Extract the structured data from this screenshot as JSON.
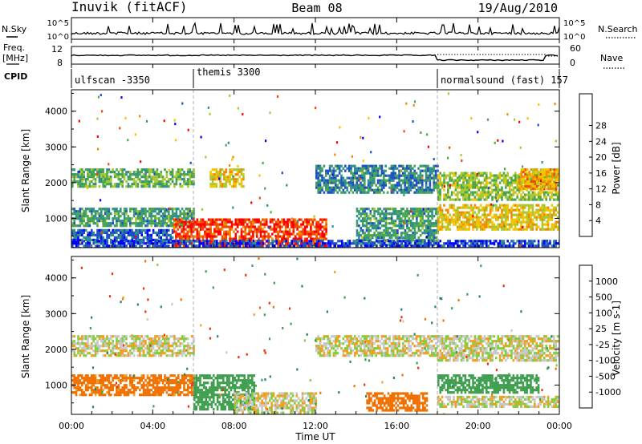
{
  "header": {
    "station": "Inuvik (fitACF)",
    "beam": "Beam 08",
    "date": "19/Aug/2010"
  },
  "top_panels": {
    "nsky_label": "N.Sky",
    "nsearch_label": "N.Search",
    "nsky_ticks": [
      "10^5",
      "10^0"
    ],
    "nsearch_ticks": [
      "10^5",
      "10^0"
    ],
    "freq_label_1": "Freq.",
    "freq_label_2": "[MHz]",
    "freq_ticks": [
      "12",
      "8"
    ],
    "nave_label": "Nave",
    "nave_ticks": [
      "60",
      "0"
    ],
    "cpid_label": "CPID",
    "cpid_segments": [
      {
        "label": "ulfscan -3350",
        "start_hour": 0
      },
      {
        "label": "themis 3300",
        "start_hour": 6
      },
      {
        "label": "normalsound (fast) 157",
        "start_hour": 18
      }
    ]
  },
  "time_axis": {
    "label": "Time UT",
    "ticks": [
      "00:00",
      "04:00",
      "08:00",
      "12:00",
      "16:00",
      "20:00",
      "00:00"
    ],
    "range_hours": [
      0,
      24
    ]
  },
  "range_axis": {
    "label": "Slant Range [km]",
    "ticks": [
      "1000",
      "2000",
      "3000",
      "4000"
    ],
    "range_km": [
      180,
      4600
    ]
  },
  "chart_data": [
    {
      "type": "heatmap",
      "panel": "power",
      "title": "",
      "xlabel": "Time UT",
      "ylabel": "Slant Range [km]",
      "xlim": [
        0,
        24
      ],
      "ylim": [
        180,
        4600
      ],
      "colorbar": {
        "label": "Power [dB]",
        "ticks": [
          "4",
          "8",
          "12",
          "16",
          "20",
          "24",
          "28"
        ],
        "range": [
          0,
          30
        ],
        "colors": [
          "#0000ff",
          "#1f4fc6",
          "#2f8f8a",
          "#4aa64a",
          "#a8c832",
          "#f2c400",
          "#f08a00",
          "#f04a00",
          "#ff0000"
        ]
      },
      "regions": [
        {
          "t": [
            0.0,
            6.0
          ],
          "r": [
            1900,
            2400
          ],
          "value": 12
        },
        {
          "t": [
            0.0,
            6.0
          ],
          "r": [
            800,
            1300
          ],
          "value": 10
        },
        {
          "t": [
            0.0,
            5.0
          ],
          "r": [
            300,
            700
          ],
          "value": 6
        },
        {
          "t": [
            5.0,
            12.5
          ],
          "r": [
            180,
            1000
          ],
          "value": 26
        },
        {
          "t": [
            6.8,
            8.5
          ],
          "r": [
            1900,
            2400
          ],
          "value": 18
        },
        {
          "t": [
            12.0,
            18.0
          ],
          "r": [
            1700,
            2500
          ],
          "value": 8
        },
        {
          "t": [
            14.0,
            18.0
          ],
          "r": [
            250,
            1300
          ],
          "value": 10
        },
        {
          "t": [
            18.0,
            24.0
          ],
          "r": [
            1500,
            2300
          ],
          "value": 14
        },
        {
          "t": [
            18.0,
            24.0
          ],
          "r": [
            700,
            1400
          ],
          "value": 18
        },
        {
          "t": [
            22.0,
            24.0
          ],
          "r": [
            1800,
            2400
          ],
          "value": 20
        },
        {
          "t": [
            0.0,
            24.0
          ],
          "r": [
            180,
            400
          ],
          "value": 4
        }
      ]
    },
    {
      "type": "heatmap",
      "panel": "velocity",
      "title": "",
      "xlabel": "Time UT",
      "ylabel": "Slant Range [km]",
      "xlim": [
        0,
        24
      ],
      "ylim": [
        180,
        4600
      ],
      "colorbar": {
        "label": "Velocity [m s-1]",
        "ticks": [
          "1000",
          "500",
          "100",
          "25",
          "-25",
          "-100",
          "-500",
          "-1000"
        ],
        "range": [
          -1000,
          1000
        ],
        "colors": [
          "#1f3fbf",
          "#2f7f6f",
          "#3f9f4f",
          "#7fcf3f",
          "#c8c8c8",
          "#f0a020",
          "#f07000",
          "#f03000",
          "#ff0000"
        ]
      },
      "regions": [
        {
          "t": [
            0.0,
            6.0
          ],
          "r": [
            1800,
            2400
          ],
          "value": 0
        },
        {
          "t": [
            0.0,
            6.0
          ],
          "r": [
            700,
            1300
          ],
          "value": -150
        },
        {
          "t": [
            6.0,
            9.0
          ],
          "r": [
            300,
            1300
          ],
          "value": 200
        },
        {
          "t": [
            8.0,
            12.0
          ],
          "r": [
            200,
            800
          ],
          "value": 0
        },
        {
          "t": [
            12.0,
            18.0
          ],
          "r": [
            1800,
            2400
          ],
          "value": 0
        },
        {
          "t": [
            14.5,
            17.5
          ],
          "r": [
            300,
            800
          ],
          "value": -400
        },
        {
          "t": [
            18.0,
            24.0
          ],
          "r": [
            1700,
            2400
          ],
          "value": 0
        },
        {
          "t": [
            18.0,
            23.0
          ],
          "r": [
            800,
            1300
          ],
          "value": 300
        },
        {
          "t": [
            18.0,
            24.0
          ],
          "r": [
            400,
            700
          ],
          "value": 0
        }
      ]
    }
  ]
}
